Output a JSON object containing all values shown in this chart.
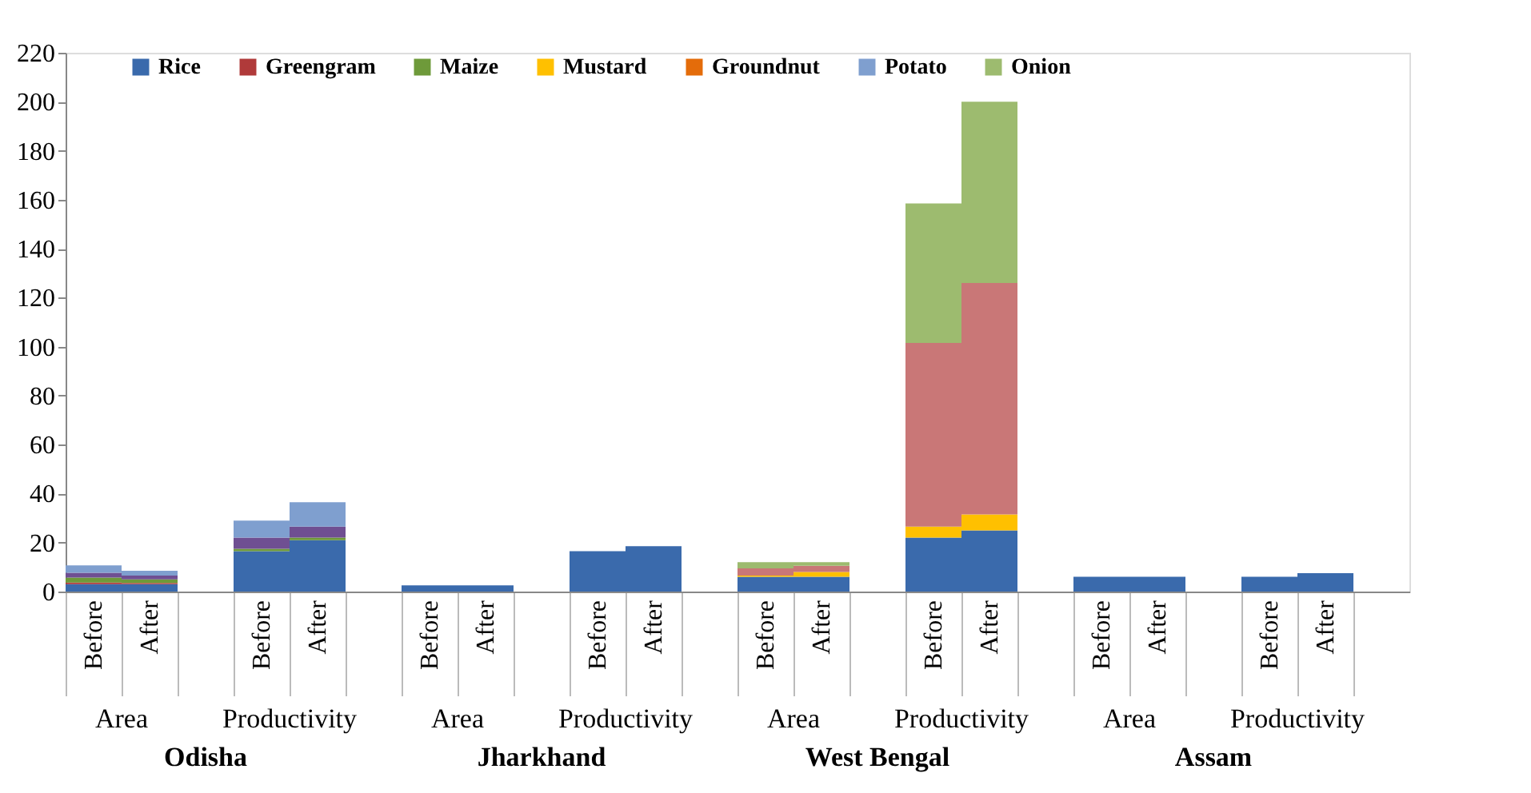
{
  "chart_data": {
    "type": "bar",
    "stacked": true,
    "categories": [
      "Before",
      "After",
      null,
      "Before",
      "After",
      null,
      "Before",
      "After",
      null,
      "Before",
      "After",
      null,
      "Before",
      "After",
      null,
      "Before",
      "After",
      null,
      "Before",
      "After",
      null,
      "Before",
      "After",
      null
    ],
    "series": [
      {
        "name": "Rice",
        "color": "#3a6aac",
        "values": [
          3,
          3,
          null,
          16.5,
          21,
          null,
          2.5,
          2.5,
          null,
          16.5,
          18.5,
          null,
          6,
          6,
          null,
          22,
          25,
          null,
          6,
          6,
          null,
          6,
          7.5,
          null
        ]
      },
      {
        "name": "Greengram",
        "color": "#b03a3a",
        "values": [
          0.7,
          0.5,
          null,
          null,
          null,
          null,
          null,
          null,
          null,
          null,
          null,
          null,
          null,
          null,
          null,
          null,
          null,
          null,
          null,
          null,
          null,
          null,
          null,
          null
        ]
      },
      {
        "name": "Maize",
        "color": "#6e9a3a",
        "values": [
          2,
          1.5,
          null,
          1,
          1,
          null,
          null,
          null,
          null,
          null,
          null,
          null,
          null,
          null,
          null,
          null,
          null,
          null,
          null,
          null,
          null,
          null,
          null,
          null
        ]
      },
      {
        "name": "Mustard",
        "color": "#ffc000",
        "values": [
          null,
          null,
          null,
          null,
          null,
          null,
          null,
          null,
          null,
          null,
          null,
          null,
          0.5,
          2,
          null,
          4.5,
          6.5,
          null,
          null,
          null,
          null,
          null,
          null,
          null
        ]
      },
      {
        "name": "Groundnut",
        "color": "#e46c0a",
        "values": [
          null,
          null,
          null,
          null,
          null,
          null,
          null,
          null,
          null,
          null,
          null,
          null,
          null,
          null,
          null,
          null,
          null,
          null,
          null,
          null,
          null,
          null,
          null,
          null
        ]
      },
      {
        "color": "#6f4f92",
        "values": [
          2,
          1.5,
          null,
          4.5,
          4.5,
          null,
          null,
          null,
          null,
          null,
          null,
          null,
          null,
          null,
          null,
          null,
          null,
          null,
          null,
          null,
          null,
          null,
          null,
          null
        ]
      },
      {
        "color": "#c97777",
        "values": [
          null,
          null,
          null,
          null,
          null,
          null,
          null,
          null,
          null,
          null,
          null,
          null,
          3,
          2.5,
          null,
          75,
          94.5,
          null,
          null,
          null,
          null,
          null,
          null,
          null
        ]
      },
      {
        "name": "Potato",
        "color": "#7f9fcf",
        "values": [
          3,
          2,
          null,
          7,
          10,
          null,
          null,
          null,
          null,
          null,
          null,
          null,
          null,
          null,
          null,
          null,
          null,
          null,
          null,
          null,
          null,
          null,
          null,
          null
        ]
      },
      {
        "name": "Onion",
        "color": "#9dbb6f",
        "values": [
          null,
          null,
          null,
          null,
          null,
          null,
          null,
          null,
          null,
          null,
          null,
          null,
          2.5,
          1.5,
          null,
          57,
          74,
          null,
          null,
          null,
          null,
          null,
          null,
          null
        ]
      }
    ],
    "ylim": [
      0,
      220
    ],
    "yticks": [
      0,
      20,
      40,
      60,
      80,
      100,
      120,
      140,
      160,
      180,
      200,
      220
    ],
    "grid": false,
    "legend": "top",
    "annotations": [
      "Area",
      "Productivity",
      "Area",
      "Productivity",
      "Area",
      "Productivity",
      "Area",
      "Productivity",
      "Odisha",
      "Jharkhand",
      "West Bengal",
      "Assam"
    ]
  }
}
